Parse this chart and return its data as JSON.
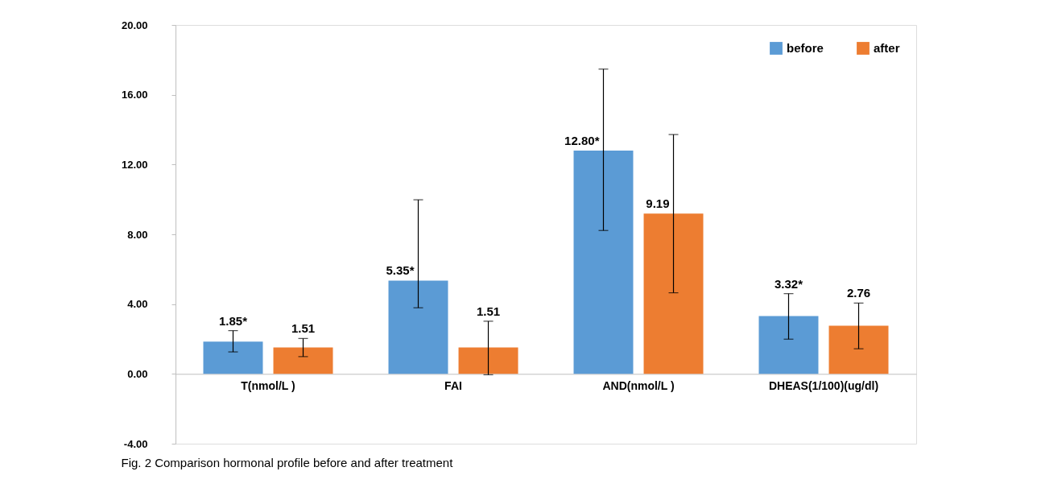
{
  "chart_data": {
    "type": "bar",
    "categories": [
      "T(nmol/L )",
      "FAI",
      "AND(nmol/L )",
      "DHEAS(1/100)(ug/dl)"
    ],
    "series": [
      {
        "name": "before",
        "color": "#5b9bd5",
        "values": [
          1.85,
          5.35,
          12.8,
          3.32
        ],
        "errors": [
          [
            1.26,
            2.48
          ],
          [
            3.79,
            9.98
          ],
          [
            8.22,
            17.47
          ],
          [
            1.99,
            4.6
          ]
        ],
        "value_labels": [
          "1.85*",
          "5.35*",
          "12.80*",
          "3.32*"
        ]
      },
      {
        "name": "after",
        "color": "#ed7d31",
        "values": [
          1.51,
          1.51,
          9.19,
          2.76
        ],
        "errors": [
          [
            0.99,
            2.03
          ],
          [
            -0.05,
            3.02
          ],
          [
            4.65,
            13.72
          ],
          [
            1.44,
            4.06
          ]
        ],
        "value_labels": [
          "1.51",
          "1.51",
          "9.19",
          "2.76"
        ]
      }
    ],
    "ylim": [
      -4,
      20
    ],
    "yticks": [
      {
        "value": -4,
        "label": "-4.00"
      },
      {
        "value": 0,
        "label": "0.00"
      },
      {
        "value": 4,
        "label": "4.00"
      },
      {
        "value": 8,
        "label": "8.00"
      },
      {
        "value": 12,
        "label": "12.00"
      },
      {
        "value": 16,
        "label": "16.00"
      },
      {
        "value": 20,
        "label": "20.00"
      }
    ],
    "legend": "top right",
    "grid": false,
    "annotations": [
      "Fig. 2 Comparison hormonal profile before and after treatment"
    ]
  }
}
